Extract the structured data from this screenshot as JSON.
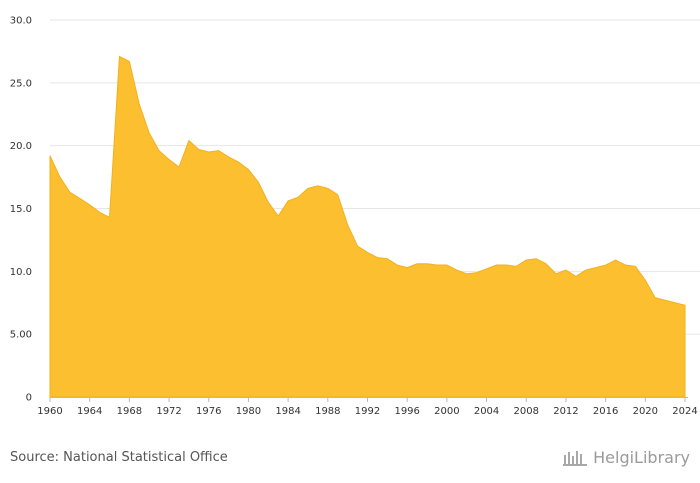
{
  "chart_data": {
    "type": "area",
    "colors": {
      "fill": "#FBBF2F",
      "stroke": "#F2B21F",
      "grid": "#e6e6e6",
      "axis": "#b9b9b9",
      "text": "#333333"
    },
    "x": [
      1960,
      1961,
      1962,
      1963,
      1964,
      1965,
      1966,
      1967,
      1968,
      1969,
      1970,
      1971,
      1972,
      1973,
      1974,
      1975,
      1976,
      1977,
      1978,
      1979,
      1980,
      1981,
      1982,
      1983,
      1984,
      1985,
      1986,
      1987,
      1988,
      1989,
      1990,
      1991,
      1992,
      1993,
      1994,
      1995,
      1996,
      1997,
      1998,
      1999,
      2000,
      2001,
      2002,
      2003,
      2004,
      2005,
      2006,
      2007,
      2008,
      2009,
      2010,
      2011,
      2012,
      2013,
      2014,
      2015,
      2016,
      2017,
      2018,
      2019,
      2020,
      2021,
      2022,
      2023,
      2024
    ],
    "values": [
      19.2,
      17.5,
      16.3,
      15.8,
      15.3,
      14.7,
      14.3,
      27.1,
      26.7,
      23.3,
      21.0,
      19.6,
      18.9,
      18.3,
      20.4,
      19.7,
      19.5,
      19.6,
      19.1,
      18.7,
      18.1,
      17.1,
      15.5,
      14.4,
      15.6,
      15.9,
      16.6,
      16.8,
      16.6,
      16.1,
      13.7,
      12.0,
      11.5,
      11.1,
      11.0,
      10.5,
      10.3,
      10.6,
      10.6,
      10.5,
      10.5,
      10.1,
      9.8,
      9.9,
      10.2,
      10.5,
      10.5,
      10.4,
      10.9,
      11.0,
      10.6,
      9.8,
      10.1,
      9.6,
      10.1,
      10.3,
      10.5,
      10.9,
      10.5,
      10.4,
      9.3,
      7.9,
      7.7,
      7.5,
      7.3
    ],
    "ylim": [
      0,
      30
    ],
    "y_ticks": [
      "0",
      "5.00",
      "10.0",
      "15.0",
      "20.0",
      "25.0",
      "30.0"
    ],
    "x_tick_labels": [
      "1960",
      "1964",
      "1968",
      "1972",
      "1976",
      "1980",
      "1984",
      "1988",
      "1992",
      "1996",
      "2000",
      "2004",
      "2008",
      "2012",
      "2016",
      "2020",
      "2024"
    ],
    "grid": true
  },
  "footer": {
    "source": "Source: National Statistical Office",
    "brand": "HelgiLibrary"
  }
}
